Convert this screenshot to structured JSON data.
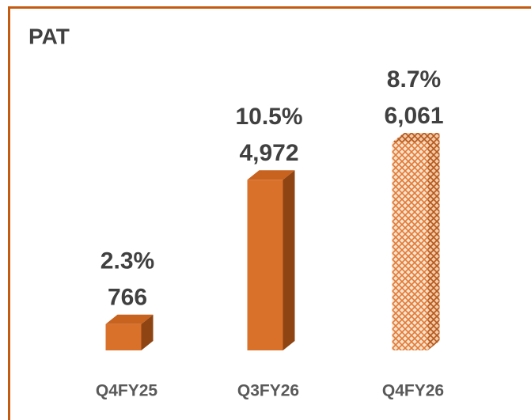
{
  "chart_data": {
    "type": "bar3d",
    "title": "PAT",
    "categories": [
      "Q4FY25",
      "Q3FY26",
      "Q4FY26"
    ],
    "values": [
      766,
      4972,
      6061
    ],
    "value_labels": [
      "766",
      "4,972",
      "6,061"
    ],
    "margin_labels": [
      "2.3%",
      "10.5%",
      "8.7%"
    ],
    "color": "#d9712b",
    "fills": [
      "solid",
      "solid",
      "crosshatch"
    ]
  }
}
